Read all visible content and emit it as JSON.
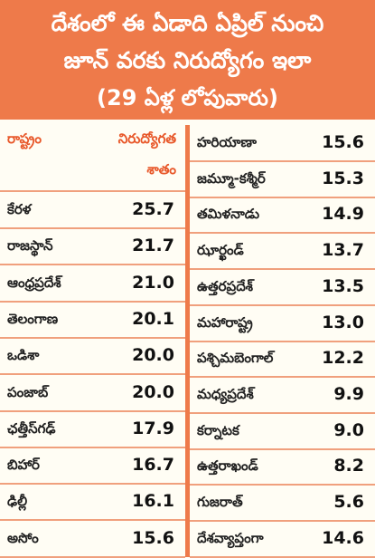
{
  "header": {
    "line1": "దేశంలో ఈ ఏడాది ఏప్రిల్ నుంచి",
    "line2": "జూన్ వరకు నిరుద్యోగం ఇలా",
    "line3": "(29 ఏళ్ల లోపువారు)"
  },
  "table_header": {
    "col_state": "రాష్ట్రం",
    "col_unemployment": "నిరుద్యోగత",
    "col_unemployment_line2": "శాతం"
  },
  "colors": {
    "accent": "#ee7a4a",
    "header_text": "#e8582a",
    "divider": "#f0a07d"
  },
  "chart_data": {
    "type": "table",
    "title": "దేశంలో ఈ ఏడాది ఏప్రిల్ నుంచి జూన్ వరకు నిరుద్యోగం ఇలా (29 ఏళ్ల లోపువారు)",
    "columns": [
      "రాష్ట్రం",
      "నిరుద్యోగత శాతం"
    ],
    "left": [
      {
        "name": "కేరళ",
        "value": "25.7"
      },
      {
        "name": "రాజస్థాన్",
        "value": "21.7"
      },
      {
        "name": "ఆంధ్రప్రదేశ్",
        "value": "21.0"
      },
      {
        "name": "తెలంగాణ",
        "value": "20.1"
      },
      {
        "name": "ఒడిశా",
        "value": "20.0"
      },
      {
        "name": "పంజాబ్",
        "value": "20.0"
      },
      {
        "name": "ఛత్తీస్‌గఢ్",
        "value": "17.9"
      },
      {
        "name": "బిహార్",
        "value": "16.7"
      },
      {
        "name": "ఢిల్లీ",
        "value": "16.1"
      },
      {
        "name": "అసోం",
        "value": "15.6"
      }
    ],
    "right": [
      {
        "name": "హరియాణా",
        "value": "15.6"
      },
      {
        "name": "జమ్మూ-కశ్మీర్",
        "value": "15.3"
      },
      {
        "name": "తమిళనాడు",
        "value": "14.9"
      },
      {
        "name": "ఝార్ఖండ్",
        "value": "13.7"
      },
      {
        "name": "ఉత్తరప్రదేశ్",
        "value": "13.5"
      },
      {
        "name": "మహారాష్ట్ర",
        "value": "13.0"
      },
      {
        "name": "పశ్చిమబెంగాల్",
        "value": "12.2"
      },
      {
        "name": "మధ్యప్రదేశ్",
        "value": "9.9"
      },
      {
        "name": "కర్నాటక",
        "value": "9.0"
      },
      {
        "name": "ఉత్తరాఖండ్",
        "value": "8.2"
      },
      {
        "name": "గుజరాత్",
        "value": "5.6"
      },
      {
        "name": "దేశవ్యాప్తంగా",
        "value": "14.6"
      }
    ]
  }
}
